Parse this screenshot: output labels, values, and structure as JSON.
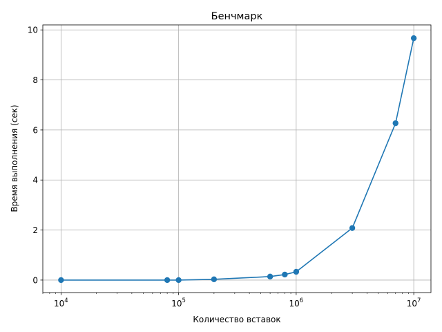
{
  "chart_data": {
    "type": "line",
    "title": "Бенчмарк",
    "xlabel": "Количество вставок",
    "ylabel": "Время выполнения (сек)",
    "xscale": "log",
    "xlim": [
      7000,
      14000000
    ],
    "ylim": [
      -0.5,
      10.2
    ],
    "grid": true,
    "x_ticks": [
      {
        "value": 10000,
        "base": "10",
        "exp": "4"
      },
      {
        "value": 100000,
        "base": "10",
        "exp": "5"
      },
      {
        "value": 1000000,
        "base": "10",
        "exp": "6"
      },
      {
        "value": 10000000,
        "base": "10",
        "exp": "7"
      }
    ],
    "y_ticks": [
      0,
      2,
      4,
      6,
      8,
      10
    ],
    "series": [
      {
        "color": "#1f77b4",
        "marker": "circle",
        "x": [
          10000,
          80000,
          100000,
          200000,
          600000,
          800000,
          1000000,
          3000000,
          7000000,
          10000000
        ],
        "y": [
          0.0,
          0.0,
          0.0,
          0.03,
          0.14,
          0.22,
          0.33,
          2.08,
          6.27,
          9.67
        ]
      }
    ]
  }
}
